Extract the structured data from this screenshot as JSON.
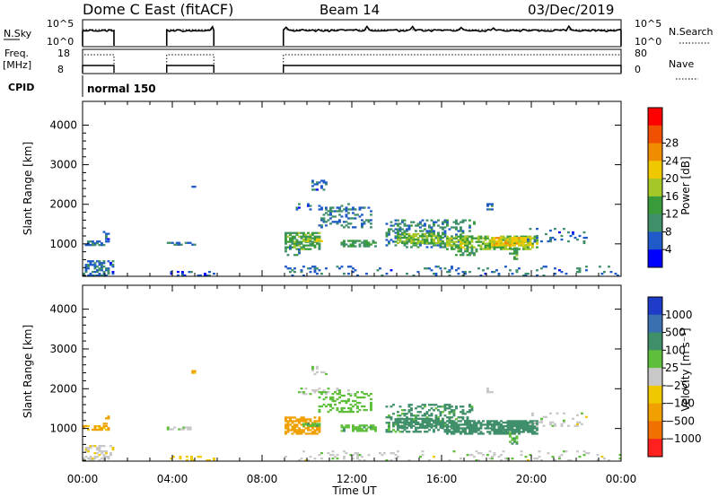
{
  "header": {
    "station": "Dome C East (fitACF)",
    "beam": "Beam 14",
    "date": "03/Dec/2019"
  },
  "summary_panels": {
    "nsky_label": "N.Sky",
    "nsky_ticks": [
      "10^5",
      "10^0"
    ],
    "nsearch_label": "N.Search",
    "freq_label_lines": [
      "Freq.",
      "[MHz]"
    ],
    "freq_ticks": [
      "18",
      "8"
    ],
    "nave_label": "Nave",
    "nave_ticks": [
      "80",
      "0"
    ],
    "cpid_label": "CPID",
    "cpid_value": "normal 150"
  },
  "colors": {
    "power_scale": [
      "#0000ff",
      "#1e5ac8",
      "#3f8f6a",
      "#3a9b3a",
      "#a5c828",
      "#f0c800",
      "#f08c00",
      "#f05000",
      "#ff0000"
    ],
    "velocity_scale": [
      "#1e3cc8",
      "#3a6fb0",
      "#3f8f6a",
      "#5fbf3a",
      "#c8c8c8",
      "#f0c800",
      "#f0a000",
      "#f07000",
      "#ff2020"
    ]
  },
  "chart_data": [
    {
      "type": "heatmap",
      "name": "power",
      "xlabel": "",
      "ylabel": "Slant Range [km]",
      "xlim_hours": [
        0,
        24
      ],
      "ylim": [
        180,
        4600
      ],
      "yticks": [
        "1000",
        "2000",
        "3000",
        "4000"
      ],
      "colorbar": {
        "label": "Power [dB]",
        "ticks": [
          "4",
          "8",
          "12",
          "16",
          "20",
          "24",
          "28"
        ],
        "range": [
          0,
          30
        ]
      },
      "x_tick_labels": [
        "00:00",
        "04:00",
        "08:00",
        "12:00",
        "16:00",
        "20:00",
        "00:00"
      ],
      "operating_intervals_hours": [
        [
          0.0,
          1.4
        ],
        [
          3.75,
          5.85
        ],
        [
          8.95,
          24.0
        ]
      ],
      "echo_regions": [
        {
          "t": [
            0.0,
            1.4
          ],
          "r": [
            180,
            550
          ],
          "dens": 0.5,
          "val": 6
        },
        {
          "t": [
            0.0,
            1.2
          ],
          "r": [
            950,
            1050
          ],
          "dens": 0.6,
          "val": 7
        },
        {
          "t": [
            0.9,
            1.2
          ],
          "r": [
            1100,
            1300
          ],
          "dens": 0.5,
          "val": 6
        },
        {
          "t": [
            3.75,
            5.0
          ],
          "r": [
            960,
            1040
          ],
          "dens": 0.6,
          "val": 7
        },
        {
          "t": [
            3.8,
            5.8
          ],
          "r": [
            180,
            300
          ],
          "dens": 0.2,
          "val": 5
        },
        {
          "t": [
            4.85,
            4.95
          ],
          "r": [
            2380,
            2460
          ],
          "dens": 0.7,
          "val": 5
        },
        {
          "t": [
            9.0,
            10.5
          ],
          "r": [
            850,
            1300
          ],
          "dens": 0.6,
          "val": 11
        },
        {
          "t": [
            9.8,
            10.6
          ],
          "r": [
            1050,
            1120
          ],
          "dens": 0.8,
          "val": 15
        },
        {
          "t": [
            9.0,
            9.6
          ],
          "r": [
            700,
            900
          ],
          "dens": 0.4,
          "val": 8
        },
        {
          "t": [
            10.2,
            10.8
          ],
          "r": [
            2350,
            2600
          ],
          "dens": 0.3,
          "val": 6
        },
        {
          "t": [
            9.5,
            12.5
          ],
          "r": [
            1850,
            2000
          ],
          "dens": 0.2,
          "val": 6
        },
        {
          "t": [
            10.5,
            12.8
          ],
          "r": [
            1400,
            1900
          ],
          "dens": 0.3,
          "val": 7
        },
        {
          "t": [
            11.5,
            13.0
          ],
          "r": [
            920,
            1080
          ],
          "dens": 0.6,
          "val": 10
        },
        {
          "t": [
            13.5,
            17.5
          ],
          "r": [
            900,
            1600
          ],
          "dens": 0.35,
          "val": 8
        },
        {
          "t": [
            14.0,
            16.0
          ],
          "r": [
            1000,
            1250
          ],
          "dens": 0.65,
          "val": 13
        },
        {
          "t": [
            16.2,
            20.3
          ],
          "r": [
            850,
            1200
          ],
          "dens": 0.7,
          "val": 14
        },
        {
          "t": [
            16.6,
            17.6
          ],
          "r": [
            700,
            900
          ],
          "dens": 0.5,
          "val": 10
        },
        {
          "t": [
            18.2,
            20.0
          ],
          "r": [
            950,
            1150
          ],
          "dens": 0.8,
          "val": 18
        },
        {
          "t": [
            19.0,
            19.4
          ],
          "r": [
            600,
            900
          ],
          "dens": 0.6,
          "val": 11
        },
        {
          "t": [
            19.8,
            22.5
          ],
          "r": [
            1000,
            1400
          ],
          "dens": 0.15,
          "val": 6
        },
        {
          "t": [
            9.0,
            24.0
          ],
          "r": [
            180,
            420
          ],
          "dens": 0.12,
          "val": 6
        },
        {
          "t": [
            18.0,
            18.3
          ],
          "r": [
            1850,
            1990
          ],
          "dens": 0.6,
          "val": 6
        }
      ]
    },
    {
      "type": "heatmap",
      "name": "velocity",
      "xlabel": "Time UT",
      "ylabel": "Slant Range [km]",
      "xlim_hours": [
        0,
        24
      ],
      "ylim": [
        180,
        4600
      ],
      "yticks": [
        "1000",
        "2000",
        "3000",
        "4000"
      ],
      "colorbar": {
        "label": "Velocity [m s⁻¹]",
        "ticks": [
          "1000",
          "500",
          "100",
          "25",
          "−25",
          "−100",
          "−500",
          "−1000"
        ]
      },
      "x_tick_labels": [
        "00:00",
        "04:00",
        "08:00",
        "12:00",
        "16:00",
        "20:00",
        "00:00"
      ],
      "echo_regions": [
        {
          "t": [
            0.0,
            1.4
          ],
          "r": [
            180,
            550
          ],
          "dens": 0.45,
          "val": -10
        },
        {
          "t": [
            0.0,
            1.2
          ],
          "r": [
            950,
            1050
          ],
          "dens": 0.6,
          "val": -120
        },
        {
          "t": [
            0.9,
            1.2
          ],
          "r": [
            1100,
            1300
          ],
          "dens": 0.5,
          "val": -150
        },
        {
          "t": [
            3.75,
            5.0
          ],
          "r": [
            960,
            1040
          ],
          "dens": 0.6,
          "val": 5
        },
        {
          "t": [
            3.8,
            5.8
          ],
          "r": [
            180,
            300
          ],
          "dens": 0.2,
          "val": -60
        },
        {
          "t": [
            4.85,
            4.95
          ],
          "r": [
            2380,
            2460
          ],
          "dens": 0.7,
          "val": -120
        },
        {
          "t": [
            9.0,
            10.5
          ],
          "r": [
            850,
            1300
          ],
          "dens": 0.6,
          "val": -300
        },
        {
          "t": [
            9.8,
            10.6
          ],
          "r": [
            1050,
            1120
          ],
          "dens": 0.8,
          "val": 80
        },
        {
          "t": [
            10.2,
            10.8
          ],
          "r": [
            2350,
            2600
          ],
          "dens": 0.3,
          "val": 5
        },
        {
          "t": [
            9.5,
            12.5
          ],
          "r": [
            1850,
            2000
          ],
          "dens": 0.2,
          "val": 10
        },
        {
          "t": [
            10.5,
            12.8
          ],
          "r": [
            1400,
            1900
          ],
          "dens": 0.3,
          "val": 60
        },
        {
          "t": [
            11.5,
            13.0
          ],
          "r": [
            920,
            1080
          ],
          "dens": 0.6,
          "val": 80
        },
        {
          "t": [
            13.5,
            17.5
          ],
          "r": [
            900,
            1600
          ],
          "dens": 0.35,
          "val": 120
        },
        {
          "t": [
            14.0,
            16.0
          ],
          "r": [
            1000,
            1250
          ],
          "dens": 0.65,
          "val": 200
        },
        {
          "t": [
            16.2,
            20.3
          ],
          "r": [
            850,
            1200
          ],
          "dens": 0.7,
          "val": 260
        },
        {
          "t": [
            18.2,
            20.0
          ],
          "r": [
            950,
            1150
          ],
          "dens": 0.8,
          "val": 200
        },
        {
          "t": [
            19.0,
            19.4
          ],
          "r": [
            600,
            900
          ],
          "dens": 0.6,
          "val": 90
        },
        {
          "t": [
            19.8,
            22.5
          ],
          "r": [
            1000,
            1400
          ],
          "dens": 0.15,
          "val": 0
        },
        {
          "t": [
            9.0,
            24.0
          ],
          "r": [
            180,
            420
          ],
          "dens": 0.12,
          "val": 3
        },
        {
          "t": [
            18.0,
            18.3
          ],
          "r": [
            1850,
            1990
          ],
          "dens": 0.6,
          "val": 0
        }
      ]
    }
  ]
}
